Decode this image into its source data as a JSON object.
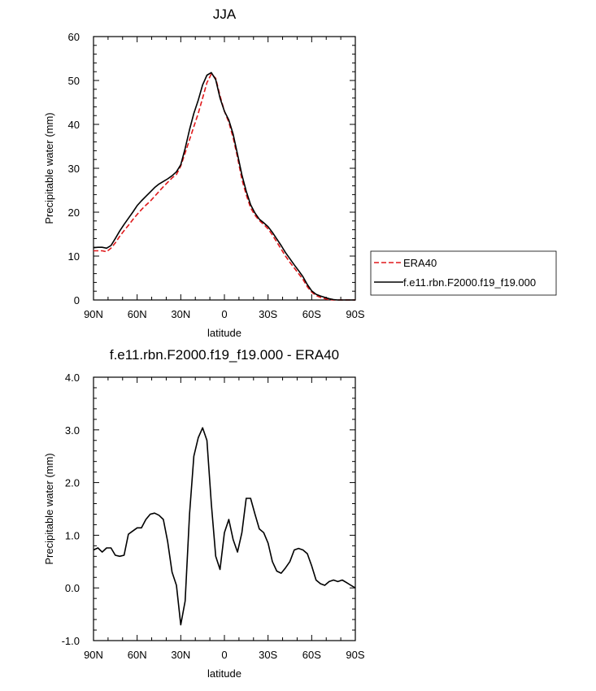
{
  "chart_data": [
    {
      "type": "line",
      "title": "JJA",
      "xlabel": "latitude",
      "ylabel": "Precipitable water (mm)",
      "x_tick_labels": [
        "90N",
        "60N",
        "30N",
        "0",
        "30S",
        "60S",
        "90S"
      ],
      "x_tick_values": [
        90,
        60,
        30,
        0,
        -30,
        -60,
        -90
      ],
      "xlim": [
        90,
        -90
      ],
      "ylim": [
        0,
        60
      ],
      "y_ticks": [
        0,
        10,
        20,
        30,
        40,
        50,
        60
      ],
      "y_tick_labels": [
        "0",
        "10",
        "20",
        "30",
        "40",
        "50",
        "60"
      ],
      "legend_position": "right",
      "series": [
        {
          "name": "ERA40",
          "color": "#e0191b",
          "dash": "dashed",
          "x": [
            90,
            87,
            84,
            81,
            78,
            75,
            72,
            69,
            66,
            63,
            60,
            57,
            54,
            51,
            48,
            45,
            42,
            39,
            36,
            33,
            30,
            27,
            24,
            21,
            18,
            15,
            12,
            9,
            6,
            3,
            0,
            -3,
            -6,
            -9,
            -12,
            -15,
            -18,
            -21,
            -24,
            -27,
            -30,
            -33,
            -36,
            -39,
            -42,
            -45,
            -48,
            -51,
            -54,
            -57,
            -60,
            -63,
            -66,
            -69,
            -72,
            -75,
            -78,
            -81,
            -84,
            -87,
            -90
          ],
          "y": [
            11.2,
            11.2,
            11.2,
            11.0,
            11.8,
            13.0,
            14.5,
            15.8,
            17.0,
            18.3,
            19.5,
            20.6,
            21.6,
            22.5,
            23.6,
            24.7,
            25.8,
            26.8,
            27.8,
            28.6,
            30.5,
            33.5,
            36.5,
            39.5,
            42.5,
            46.0,
            49.5,
            51.5,
            50.5,
            46.5,
            43.0,
            40.5,
            37.0,
            32.5,
            27.5,
            24.0,
            21.0,
            19.3,
            18.1,
            17.2,
            16.2,
            14.8,
            13.2,
            11.6,
            10.0,
            8.6,
            7.3,
            6.0,
            4.7,
            3.0,
            1.8,
            1.0,
            0.6,
            0.3,
            0.1,
            0.0,
            0.0,
            0.0,
            0.0,
            0.0,
            0.0
          ]
        },
        {
          "name": "f.e11.rbn.F2000.f19_f19.000",
          "color": "#000000",
          "dash": "solid",
          "x": [
            90,
            87,
            84,
            81,
            78,
            75,
            72,
            69,
            66,
            63,
            60,
            57,
            54,
            51,
            48,
            45,
            42,
            39,
            36,
            33,
            30,
            27,
            24,
            21,
            18,
            15,
            12,
            9,
            6,
            3,
            0,
            -3,
            -6,
            -9,
            -12,
            -15,
            -18,
            -21,
            -24,
            -27,
            -30,
            -33,
            -36,
            -39,
            -42,
            -45,
            -48,
            -51,
            -54,
            -57,
            -60,
            -63,
            -66,
            -69,
            -72,
            -75,
            -78,
            -81,
            -84,
            -87,
            -90
          ],
          "y": [
            11.9,
            12.0,
            12.0,
            11.8,
            12.4,
            14.0,
            15.7,
            17.2,
            18.6,
            20.0,
            21.5,
            22.6,
            23.6,
            24.6,
            25.6,
            26.4,
            27.0,
            27.6,
            28.3,
            29.2,
            30.8,
            34.5,
            38.8,
            42.5,
            45.5,
            49.0,
            51.2,
            51.8,
            50.2,
            46.0,
            43.0,
            41.0,
            37.8,
            33.2,
            28.5,
            24.8,
            21.7,
            19.8,
            18.4,
            17.6,
            16.7,
            15.4,
            13.9,
            12.4,
            10.8,
            9.4,
            8.0,
            6.7,
            5.3,
            3.5,
            2.1,
            1.3,
            0.9,
            0.6,
            0.3,
            0.1,
            0.0,
            0.0,
            0.0,
            0.0,
            0.0
          ]
        }
      ]
    },
    {
      "type": "line",
      "title": "f.e11.rbn.F2000.f19_f19.000 - ERA40",
      "xlabel": "latitude",
      "ylabel": "Precipitable water (mm)",
      "x_tick_labels": [
        "90N",
        "60N",
        "30N",
        "0",
        "30S",
        "60S",
        "90S"
      ],
      "x_tick_values": [
        90,
        60,
        30,
        0,
        -30,
        -60,
        -90
      ],
      "xlim": [
        90,
        -90
      ],
      "ylim": [
        -1,
        4
      ],
      "y_ticks": [
        -1,
        0,
        1,
        2,
        3,
        4
      ],
      "y_tick_labels": [
        "-1.0",
        "0.0",
        "1.0",
        "2.0",
        "3.0",
        "4.0"
      ],
      "series": [
        {
          "color": "#000000",
          "x": [
            90,
            87,
            84,
            81,
            78,
            75,
            72,
            69,
            66,
            63,
            60,
            57,
            54,
            51,
            48,
            45,
            42,
            39,
            36,
            33,
            30,
            27,
            24,
            21,
            18,
            15,
            12,
            9,
            6,
            3,
            0,
            -3,
            -6,
            -9,
            -12,
            -15,
            -18,
            -21,
            -24,
            -27,
            -30,
            -33,
            -36,
            -39,
            -42,
            -45,
            -48,
            -51,
            -54,
            -57,
            -60,
            -63,
            -66,
            -69,
            -72,
            -75,
            -78,
            -81,
            -84,
            -87,
            -90
          ],
          "y": [
            0.72,
            0.76,
            0.68,
            0.76,
            0.76,
            0.62,
            0.6,
            0.62,
            1.02,
            1.08,
            1.14,
            1.14,
            1.3,
            1.4,
            1.42,
            1.38,
            1.3,
            0.88,
            0.3,
            0.05,
            -0.7,
            -0.25,
            1.4,
            2.5,
            2.85,
            3.04,
            2.8,
            1.6,
            0.6,
            0.35,
            1.05,
            1.3,
            0.92,
            0.68,
            1.05,
            1.7,
            1.7,
            1.4,
            1.12,
            1.05,
            0.85,
            0.5,
            0.32,
            0.28,
            0.38,
            0.5,
            0.72,
            0.75,
            0.72,
            0.65,
            0.42,
            0.15,
            0.08,
            0.05,
            0.12,
            0.15,
            0.12,
            0.15,
            0.1,
            0.05,
            0.0
          ]
        }
      ]
    }
  ]
}
